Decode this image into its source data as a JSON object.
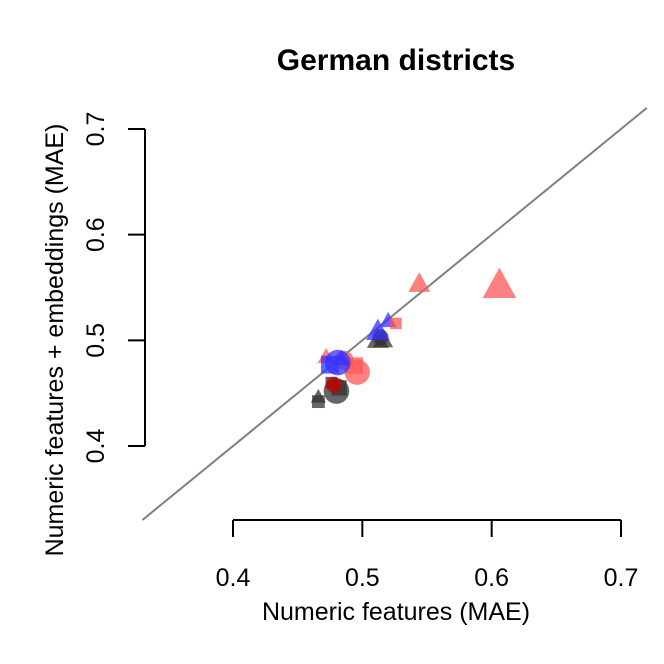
{
  "chart_data": {
    "type": "scatter",
    "title": "German districts",
    "xlabel": "Numeric features (MAE)",
    "ylabel": "Numeric features + embeddings (MAE)",
    "xlim": [
      0.4,
      0.7
    ],
    "ylim": [
      0.4,
      0.7
    ],
    "xticks": [
      "0.4",
      "0.5",
      "0.6",
      "0.7"
    ],
    "yticks": [
      "0.4",
      "0.5",
      "0.6",
      "0.7"
    ],
    "reference_line": {
      "type": "identity",
      "color": "#808080"
    },
    "grid": false,
    "legend": "none",
    "colors": {
      "black": "#333333",
      "red": "#FF5555",
      "blue": "#3333FF",
      "darkred": "#CC0000"
    },
    "points": [
      {
        "x": 0.466,
        "y": 0.446,
        "shape": "triangle",
        "color": "black",
        "size": 0.9
      },
      {
        "x": 0.466,
        "y": 0.442,
        "shape": "square",
        "color": "black",
        "size": 1.0
      },
      {
        "x": 0.48,
        "y": 0.452,
        "shape": "circle",
        "color": "black",
        "size": 1.6
      },
      {
        "x": 0.482,
        "y": 0.455,
        "shape": "square",
        "color": "black",
        "size": 1.2
      },
      {
        "x": 0.476,
        "y": 0.46,
        "shape": "square",
        "color": "black",
        "size": 0.9
      },
      {
        "x": 0.478,
        "y": 0.458,
        "shape": "circle",
        "color": "darkred",
        "size": 1.0
      },
      {
        "x": 0.496,
        "y": 0.47,
        "shape": "circle",
        "color": "red",
        "size": 1.6
      },
      {
        "x": 0.494,
        "y": 0.476,
        "shape": "square",
        "color": "red",
        "size": 1.3
      },
      {
        "x": 0.472,
        "y": 0.484,
        "shape": "triangle",
        "color": "red",
        "size": 1.0
      },
      {
        "x": 0.486,
        "y": 0.481,
        "shape": "circle",
        "color": "red",
        "size": 1.2
      },
      {
        "x": 0.475,
        "y": 0.477,
        "shape": "square",
        "color": "blue",
        "size": 1.4
      },
      {
        "x": 0.481,
        "y": 0.479,
        "shape": "circle",
        "color": "blue",
        "size": 1.6
      },
      {
        "x": 0.484,
        "y": 0.482,
        "shape": "triangle",
        "color": "blue",
        "size": 1.0
      },
      {
        "x": 0.512,
        "y": 0.5,
        "shape": "triangle",
        "color": "black",
        "size": 1.3
      },
      {
        "x": 0.516,
        "y": 0.5,
        "shape": "triangle",
        "color": "black",
        "size": 1.2
      },
      {
        "x": 0.514,
        "y": 0.503,
        "shape": "circle",
        "color": "black",
        "size": 1.0
      },
      {
        "x": 0.512,
        "y": 0.508,
        "shape": "triangle",
        "color": "blue",
        "size": 1.4
      },
      {
        "x": 0.52,
        "y": 0.518,
        "shape": "triangle",
        "color": "blue",
        "size": 1.0
      },
      {
        "x": 0.526,
        "y": 0.516,
        "shape": "square",
        "color": "red",
        "size": 0.9
      },
      {
        "x": 0.544,
        "y": 0.553,
        "shape": "triangle",
        "color": "red",
        "size": 1.3
      },
      {
        "x": 0.606,
        "y": 0.551,
        "shape": "triangle",
        "color": "red",
        "size": 2.0
      }
    ]
  }
}
